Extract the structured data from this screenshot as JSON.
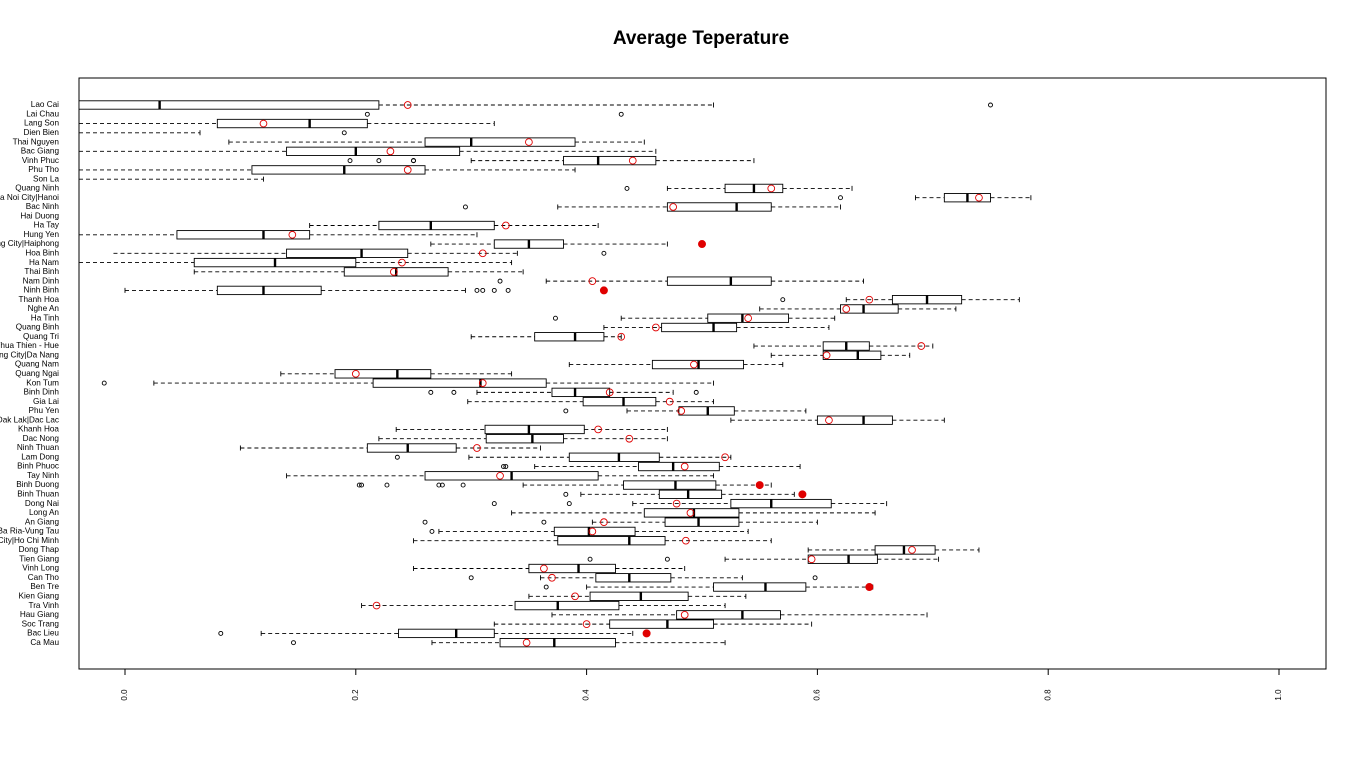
{
  "chart_data": {
    "type": "boxplot",
    "title": "Average Teperature",
    "xlabel": "",
    "ylabel": "",
    "xlim": [
      0,
      1
    ],
    "x_ticks": [
      "0.0",
      "0.2",
      "0.4",
      "0.6",
      "0.8",
      "1.0"
    ],
    "x_tick_values": [
      0,
      0.2,
      0.4,
      0.6,
      0.8,
      1.0
    ],
    "grid": false,
    "colors": {
      "box": "#000000",
      "outlier": "#000000",
      "mean": "#e00000"
    },
    "series": [
      {
        "name": "Lao Cai",
        "whisker_low": -0.04,
        "q1": -0.04,
        "median": 0.03,
        "q3": 0.22,
        "whisker_high": 0.51,
        "mean": 0.245,
        "mean_style": "hollow",
        "outliers": [
          0.75
        ]
      },
      {
        "name": "Lai Chau",
        "whisker_low": null,
        "q1": null,
        "median": null,
        "q3": null,
        "whisker_high": null,
        "mean": null,
        "mean_style": "none",
        "outliers": [
          0.21,
          0.43
        ]
      },
      {
        "name": "Lang Son",
        "whisker_low": -0.04,
        "q1": 0.08,
        "median": 0.16,
        "q3": 0.21,
        "whisker_high": 0.32,
        "mean": 0.12,
        "mean_style": "hollow",
        "outliers": []
      },
      {
        "name": "Dien Bien",
        "whisker_low": -0.04,
        "q1": null,
        "median": null,
        "q3": null,
        "whisker_high": 0.065,
        "mean": null,
        "mean_style": "none",
        "outliers": [
          0.19
        ]
      },
      {
        "name": "Thai Nguyen",
        "whisker_low": 0.09,
        "q1": 0.26,
        "median": 0.3,
        "q3": 0.39,
        "whisker_high": 0.45,
        "mean": 0.35,
        "mean_style": "hollow",
        "outliers": []
      },
      {
        "name": "Bac Giang",
        "whisker_low": -0.04,
        "q1": 0.14,
        "median": 0.2,
        "q3": 0.29,
        "whisker_high": 0.46,
        "mean": 0.23,
        "mean_style": "hollow",
        "outliers": []
      },
      {
        "name": "Vinh Phuc",
        "whisker_low": 0.3,
        "q1": 0.38,
        "median": 0.41,
        "q3": 0.46,
        "whisker_high": 0.545,
        "mean": 0.44,
        "mean_style": "hollow",
        "outliers": [
          0.195,
          0.22,
          0.25,
          0.25
        ]
      },
      {
        "name": "Phu Tho",
        "whisker_low": -0.04,
        "q1": 0.11,
        "median": 0.19,
        "q3": 0.26,
        "whisker_high": 0.39,
        "mean": 0.245,
        "mean_style": "hollow",
        "outliers": []
      },
      {
        "name": "Son La",
        "whisker_low": -0.04,
        "q1": null,
        "median": null,
        "q3": null,
        "whisker_high": 0.12,
        "mean": null,
        "mean_style": "none",
        "outliers": []
      },
      {
        "name": "Quang Ninh",
        "whisker_low": 0.47,
        "q1": 0.52,
        "median": 0.545,
        "q3": 0.57,
        "whisker_high": 0.63,
        "mean": 0.56,
        "mean_style": "hollow",
        "outliers": [
          0.435
        ]
      },
      {
        "name": "Ha Noi City|Hanoi",
        "whisker_low": 0.685,
        "q1": 0.71,
        "median": 0.73,
        "q3": 0.75,
        "whisker_high": 0.785,
        "mean": 0.74,
        "mean_style": "hollow",
        "outliers": [
          0.62
        ]
      },
      {
        "name": "Bac Ninh",
        "whisker_low": 0.375,
        "q1": 0.47,
        "median": 0.53,
        "q3": 0.56,
        "whisker_high": 0.62,
        "mean": 0.475,
        "mean_style": "hollow",
        "outliers": [
          0.295
        ]
      },
      {
        "name": "Hai Duong",
        "whisker_low": null,
        "q1": null,
        "median": null,
        "q3": null,
        "whisker_high": null,
        "mean": null,
        "mean_style": "none",
        "outliers": []
      },
      {
        "name": "Ha Tay",
        "whisker_low": 0.16,
        "q1": 0.22,
        "median": 0.265,
        "q3": 0.32,
        "whisker_high": 0.41,
        "mean": 0.33,
        "mean_style": "hollow",
        "outliers": []
      },
      {
        "name": "Hung Yen",
        "whisker_low": -0.04,
        "q1": 0.045,
        "median": 0.12,
        "q3": 0.16,
        "whisker_high": 0.305,
        "mean": 0.145,
        "mean_style": "hollow",
        "outliers": []
      },
      {
        "name": "Hai Phong City|Haiphong",
        "whisker_low": 0.265,
        "q1": 0.32,
        "median": 0.35,
        "q3": 0.38,
        "whisker_high": 0.47,
        "mean": 0.5,
        "mean_style": "filled",
        "outliers": []
      },
      {
        "name": "Hoa Binh",
        "whisker_low": -0.01,
        "q1": 0.14,
        "median": 0.205,
        "q3": 0.245,
        "whisker_high": 0.34,
        "mean": 0.31,
        "mean_style": "hollow",
        "outliers": [
          0.415
        ]
      },
      {
        "name": "Ha Nam",
        "whisker_low": -0.04,
        "q1": 0.06,
        "median": 0.13,
        "q3": 0.2,
        "whisker_high": 0.335,
        "mean": 0.24,
        "mean_style": "hollow",
        "outliers": []
      },
      {
        "name": "Thai Binh",
        "whisker_low": 0.06,
        "q1": 0.19,
        "median": 0.235,
        "q3": 0.28,
        "whisker_high": 0.345,
        "mean": 0.233,
        "mean_style": "hollow",
        "outliers": []
      },
      {
        "name": "Nam Dinh",
        "whisker_low": 0.365,
        "q1": 0.47,
        "median": 0.525,
        "q3": 0.56,
        "whisker_high": 0.64,
        "mean": 0.405,
        "mean_style": "hollow",
        "outliers": [
          0.325
        ]
      },
      {
        "name": "Ninh Binh",
        "whisker_low": 0.0,
        "q1": 0.08,
        "median": 0.12,
        "q3": 0.17,
        "whisker_high": 0.295,
        "mean": 0.415,
        "mean_style": "filled",
        "outliers": [
          0.305,
          0.31,
          0.32,
          0.332
        ]
      },
      {
        "name": "Thanh Hoa",
        "whisker_low": 0.625,
        "q1": 0.665,
        "median": 0.695,
        "q3": 0.725,
        "whisker_high": 0.775,
        "mean": 0.645,
        "mean_style": "hollow",
        "outliers": [
          0.57
        ]
      },
      {
        "name": "Nghe An",
        "whisker_low": 0.55,
        "q1": 0.62,
        "median": 0.64,
        "q3": 0.67,
        "whisker_high": 0.72,
        "mean": 0.625,
        "mean_style": "hollow",
        "outliers": []
      },
      {
        "name": "Ha Tinh",
        "whisker_low": 0.43,
        "q1": 0.505,
        "median": 0.535,
        "q3": 0.575,
        "whisker_high": 0.615,
        "mean": 0.54,
        "mean_style": "hollow",
        "outliers": [
          0.373
        ]
      },
      {
        "name": "Quang Binh",
        "whisker_low": 0.415,
        "q1": 0.465,
        "median": 0.51,
        "q3": 0.53,
        "whisker_high": 0.61,
        "mean": 0.46,
        "mean_style": "hollow",
        "outliers": []
      },
      {
        "name": "Quang Tri",
        "whisker_low": 0.3,
        "q1": 0.355,
        "median": 0.39,
        "q3": 0.415,
        "whisker_high": 0.43,
        "mean": 0.43,
        "mean_style": "hollow",
        "outliers": []
      },
      {
        "name": "Thua Thien - Hue",
        "whisker_low": 0.545,
        "q1": 0.605,
        "median": 0.625,
        "q3": 0.645,
        "whisker_high": 0.7,
        "mean": 0.69,
        "mean_style": "hollow",
        "outliers": []
      },
      {
        "name": "Da Nang City|Da Nang",
        "whisker_low": 0.56,
        "q1": 0.605,
        "median": 0.635,
        "q3": 0.655,
        "whisker_high": 0.68,
        "mean": 0.608,
        "mean_style": "hollow",
        "outliers": []
      },
      {
        "name": "Quang Nam",
        "whisker_low": 0.385,
        "q1": 0.457,
        "median": 0.497,
        "q3": 0.536,
        "whisker_high": 0.57,
        "mean": 0.493,
        "mean_style": "hollow",
        "outliers": []
      },
      {
        "name": "Quang Ngai",
        "whisker_low": 0.135,
        "q1": 0.182,
        "median": 0.236,
        "q3": 0.265,
        "whisker_high": 0.335,
        "mean": 0.2,
        "mean_style": "hollow",
        "outliers": []
      },
      {
        "name": "Kon Tum",
        "whisker_low": 0.025,
        "q1": 0.215,
        "median": 0.308,
        "q3": 0.365,
        "whisker_high": 0.51,
        "mean": 0.31,
        "mean_style": "hollow",
        "outliers": [
          -0.018
        ]
      },
      {
        "name": "Binh Dinh",
        "whisker_low": 0.305,
        "q1": 0.37,
        "median": 0.39,
        "q3": 0.42,
        "whisker_high": 0.475,
        "mean": 0.42,
        "mean_style": "hollow",
        "outliers": [
          0.265,
          0.285,
          0.495
        ]
      },
      {
        "name": "Gia Lai",
        "whisker_low": 0.297,
        "q1": 0.397,
        "median": 0.432,
        "q3": 0.46,
        "whisker_high": 0.51,
        "mean": 0.472,
        "mean_style": "hollow",
        "outliers": []
      },
      {
        "name": "Phu Yen",
        "whisker_low": 0.435,
        "q1": 0.48,
        "median": 0.505,
        "q3": 0.528,
        "whisker_high": 0.59,
        "mean": 0.482,
        "mean_style": "hollow",
        "outliers": [
          0.382
        ]
      },
      {
        "name": "Dak Lak|Dac Lac",
        "whisker_low": 0.525,
        "q1": 0.6,
        "median": 0.64,
        "q3": 0.665,
        "whisker_high": 0.71,
        "mean": 0.61,
        "mean_style": "hollow",
        "outliers": []
      },
      {
        "name": "Khanh Hoa",
        "whisker_low": 0.235,
        "q1": 0.312,
        "median": 0.35,
        "q3": 0.398,
        "whisker_high": 0.47,
        "mean": 0.41,
        "mean_style": "hollow",
        "outliers": []
      },
      {
        "name": "Dac Nong",
        "whisker_low": 0.22,
        "q1": 0.313,
        "median": 0.353,
        "q3": 0.38,
        "whisker_high": 0.47,
        "mean": 0.437,
        "mean_style": "hollow",
        "outliers": []
      },
      {
        "name": "Ninh Thuan",
        "whisker_low": 0.1,
        "q1": 0.21,
        "median": 0.245,
        "q3": 0.287,
        "whisker_high": 0.36,
        "mean": 0.305,
        "mean_style": "hollow",
        "outliers": []
      },
      {
        "name": "Lam Dong",
        "whisker_low": 0.298,
        "q1": 0.385,
        "median": 0.428,
        "q3": 0.463,
        "whisker_high": 0.525,
        "mean": 0.52,
        "mean_style": "hollow",
        "outliers": [
          0.236
        ]
      },
      {
        "name": "Binh Phuoc",
        "whisker_low": 0.355,
        "q1": 0.445,
        "median": 0.475,
        "q3": 0.515,
        "whisker_high": 0.585,
        "mean": 0.485,
        "mean_style": "hollow",
        "outliers": [
          0.328,
          0.33
        ]
      },
      {
        "name": "Tay Ninh",
        "whisker_low": 0.14,
        "q1": 0.26,
        "median": 0.335,
        "q3": 0.41,
        "whisker_high": 0.51,
        "mean": 0.325,
        "mean_style": "hollow",
        "outliers": []
      },
      {
        "name": "Binh Duong",
        "whisker_low": 0.345,
        "q1": 0.432,
        "median": 0.477,
        "q3": 0.512,
        "whisker_high": 0.56,
        "mean": 0.55,
        "mean_style": "filled",
        "outliers": [
          0.203,
          0.205,
          0.227,
          0.272,
          0.275,
          0.293
        ]
      },
      {
        "name": "Binh Thuan",
        "whisker_low": 0.395,
        "q1": 0.463,
        "median": 0.488,
        "q3": 0.517,
        "whisker_high": 0.58,
        "mean": 0.587,
        "mean_style": "filled",
        "outliers": [
          0.382
        ]
      },
      {
        "name": "Dong Nai",
        "whisker_low": 0.44,
        "q1": 0.525,
        "median": 0.56,
        "q3": 0.612,
        "whisker_high": 0.66,
        "mean": 0.478,
        "mean_style": "hollow",
        "outliers": [
          0.32,
          0.385
        ]
      },
      {
        "name": "Long An",
        "whisker_low": 0.335,
        "q1": 0.45,
        "median": 0.493,
        "q3": 0.532,
        "whisker_high": 0.65,
        "mean": 0.49,
        "mean_style": "hollow",
        "outliers": []
      },
      {
        "name": "An Giang",
        "whisker_low": 0.405,
        "q1": 0.468,
        "median": 0.497,
        "q3": 0.532,
        "whisker_high": 0.6,
        "mean": 0.415,
        "mean_style": "hollow",
        "outliers": [
          0.26,
          0.363
        ]
      },
      {
        "name": "Ba Ria-Vung Tau",
        "whisker_low": 0.272,
        "q1": 0.372,
        "median": 0.402,
        "q3": 0.442,
        "whisker_high": 0.54,
        "mean": 0.405,
        "mean_style": "hollow",
        "outliers": [
          0.266
        ]
      },
      {
        "name": "Ho Chi Minh City|Ho Chi Minh",
        "whisker_low": 0.25,
        "q1": 0.375,
        "median": 0.437,
        "q3": 0.468,
        "whisker_high": 0.56,
        "mean": 0.486,
        "mean_style": "hollow",
        "outliers": []
      },
      {
        "name": "Dong Thap",
        "whisker_low": 0.592,
        "q1": 0.65,
        "median": 0.675,
        "q3": 0.702,
        "whisker_high": 0.74,
        "mean": 0.682,
        "mean_style": "hollow",
        "outliers": []
      },
      {
        "name": "Tien Giang",
        "whisker_low": 0.52,
        "q1": 0.592,
        "median": 0.627,
        "q3": 0.652,
        "whisker_high": 0.705,
        "mean": 0.595,
        "mean_style": "hollow",
        "outliers": [
          0.403,
          0.47
        ]
      },
      {
        "name": "Vinh Long",
        "whisker_low": 0.25,
        "q1": 0.35,
        "median": 0.393,
        "q3": 0.425,
        "whisker_high": 0.485,
        "mean": 0.363,
        "mean_style": "hollow",
        "outliers": []
      },
      {
        "name": "Can Tho",
        "whisker_low": 0.36,
        "q1": 0.408,
        "median": 0.437,
        "q3": 0.473,
        "whisker_high": 0.535,
        "mean": 0.37,
        "mean_style": "hollow",
        "outliers": [
          0.3,
          0.598
        ]
      },
      {
        "name": "Ben Tre",
        "whisker_low": 0.4,
        "q1": 0.51,
        "median": 0.555,
        "q3": 0.59,
        "whisker_high": 0.648,
        "mean": 0.645,
        "mean_style": "filled",
        "outliers": [
          0.365
        ]
      },
      {
        "name": "Kien Giang",
        "whisker_low": 0.35,
        "q1": 0.403,
        "median": 0.447,
        "q3": 0.488,
        "whisker_high": 0.538,
        "mean": 0.39,
        "mean_style": "hollow",
        "outliers": []
      },
      {
        "name": "Tra Vinh",
        "whisker_low": 0.205,
        "q1": 0.338,
        "median": 0.375,
        "q3": 0.428,
        "whisker_high": 0.52,
        "mean": 0.218,
        "mean_style": "hollow",
        "outliers": []
      },
      {
        "name": "Hau Giang",
        "whisker_low": 0.37,
        "q1": 0.478,
        "median": 0.535,
        "q3": 0.568,
        "whisker_high": 0.695,
        "mean": 0.485,
        "mean_style": "hollow",
        "outliers": []
      },
      {
        "name": "Soc Trang",
        "whisker_low": 0.32,
        "q1": 0.42,
        "median": 0.47,
        "q3": 0.51,
        "whisker_high": 0.595,
        "mean": 0.4,
        "mean_style": "hollow",
        "outliers": []
      },
      {
        "name": "Bac Lieu",
        "whisker_low": 0.118,
        "q1": 0.237,
        "median": 0.287,
        "q3": 0.32,
        "whisker_high": 0.44,
        "mean": 0.452,
        "mean_style": "filled",
        "outliers": [
          0.083
        ]
      },
      {
        "name": "Ca Mau",
        "whisker_low": 0.266,
        "q1": 0.325,
        "median": 0.372,
        "q3": 0.425,
        "whisker_high": 0.52,
        "mean": 0.348,
        "mean_style": "hollow",
        "outliers": [
          0.146
        ]
      }
    ]
  }
}
